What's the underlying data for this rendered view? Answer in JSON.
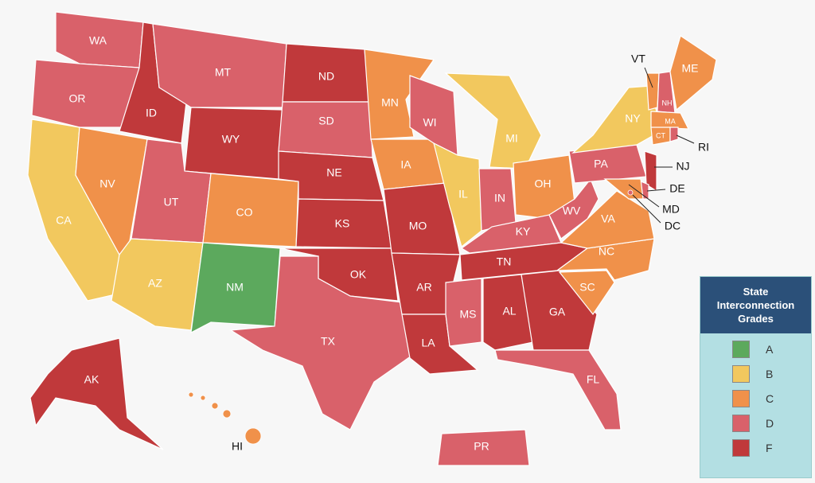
{
  "legend": {
    "title": "State Interconnection Grades",
    "items": [
      {
        "grade": "A",
        "color": "#5ca95d"
      },
      {
        "grade": "B",
        "color": "#f2c85e"
      },
      {
        "grade": "C",
        "color": "#f0914a"
      },
      {
        "grade": "D",
        "color": "#d9616a"
      },
      {
        "grade": "F",
        "color": "#c0393b"
      }
    ]
  },
  "states": [
    {
      "abbr": "WA",
      "grade": "D"
    },
    {
      "abbr": "OR",
      "grade": "D"
    },
    {
      "abbr": "CA",
      "grade": "B"
    },
    {
      "abbr": "NV",
      "grade": "C"
    },
    {
      "abbr": "ID",
      "grade": "F"
    },
    {
      "abbr": "MT",
      "grade": "D"
    },
    {
      "abbr": "WY",
      "grade": "F"
    },
    {
      "abbr": "UT",
      "grade": "D"
    },
    {
      "abbr": "AZ",
      "grade": "B"
    },
    {
      "abbr": "CO",
      "grade": "C"
    },
    {
      "abbr": "NM",
      "grade": "A"
    },
    {
      "abbr": "ND",
      "grade": "F"
    },
    {
      "abbr": "SD",
      "grade": "D"
    },
    {
      "abbr": "NE",
      "grade": "F"
    },
    {
      "abbr": "KS",
      "grade": "F"
    },
    {
      "abbr": "OK",
      "grade": "F"
    },
    {
      "abbr": "TX",
      "grade": "D"
    },
    {
      "abbr": "MN",
      "grade": "C"
    },
    {
      "abbr": "IA",
      "grade": "C"
    },
    {
      "abbr": "MO",
      "grade": "F"
    },
    {
      "abbr": "AR",
      "grade": "F"
    },
    {
      "abbr": "LA",
      "grade": "F"
    },
    {
      "abbr": "WI",
      "grade": "D"
    },
    {
      "abbr": "IL",
      "grade": "B"
    },
    {
      "abbr": "MI",
      "grade": "B"
    },
    {
      "abbr": "IN",
      "grade": "D"
    },
    {
      "abbr": "OH",
      "grade": "C"
    },
    {
      "abbr": "KY",
      "grade": "D"
    },
    {
      "abbr": "TN",
      "grade": "F"
    },
    {
      "abbr": "MS",
      "grade": "D"
    },
    {
      "abbr": "AL",
      "grade": "F"
    },
    {
      "abbr": "GA",
      "grade": "F"
    },
    {
      "abbr": "FL",
      "grade": "D"
    },
    {
      "abbr": "SC",
      "grade": "C"
    },
    {
      "abbr": "NC",
      "grade": "C"
    },
    {
      "abbr": "VA",
      "grade": "C"
    },
    {
      "abbr": "WV",
      "grade": "D"
    },
    {
      "abbr": "PA",
      "grade": "D"
    },
    {
      "abbr": "NY",
      "grade": "B"
    },
    {
      "abbr": "VT",
      "grade": "C"
    },
    {
      "abbr": "NH",
      "grade": "D"
    },
    {
      "abbr": "ME",
      "grade": "C"
    },
    {
      "abbr": "MA",
      "grade": "C"
    },
    {
      "abbr": "CT",
      "grade": "C"
    },
    {
      "abbr": "RI",
      "grade": "D"
    },
    {
      "abbr": "NJ",
      "grade": "F"
    },
    {
      "abbr": "DE",
      "grade": "D"
    },
    {
      "abbr": "MD",
      "grade": "C"
    },
    {
      "abbr": "DC",
      "grade": "D"
    },
    {
      "abbr": "AK",
      "grade": "F"
    },
    {
      "abbr": "HI",
      "grade": "C"
    },
    {
      "abbr": "PR",
      "grade": "D"
    }
  ]
}
